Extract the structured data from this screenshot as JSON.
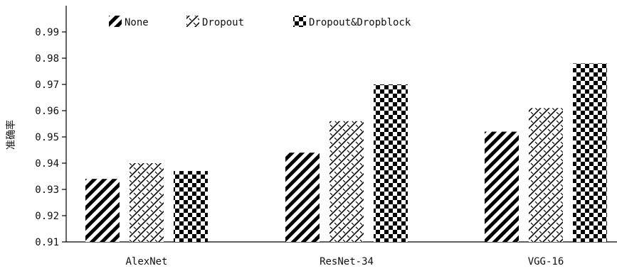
{
  "chart_data": {
    "type": "bar",
    "title": "",
    "xlabel": "",
    "ylabel": "准确率",
    "categories": [
      "AlexNet",
      "ResNet-34",
      "VGG-16"
    ],
    "ylim": [
      0.91,
      1.0
    ],
    "yticks": [
      "0.91",
      "0.92",
      "0.93",
      "0.94",
      "0.95",
      "0.96",
      "0.97",
      "0.98",
      "0.99"
    ],
    "grid": false,
    "legend_position": "top-left",
    "series": [
      {
        "name": "None",
        "pattern": "diagonal-stripes",
        "values": [
          0.934,
          0.944,
          0.952
        ]
      },
      {
        "name": "Dropout",
        "pattern": "crosshatch",
        "values": [
          0.94,
          0.956,
          0.961
        ]
      },
      {
        "name": "Dropout&Dropblock",
        "pattern": "checkerboard",
        "values": [
          0.937,
          0.97,
          0.978
        ]
      }
    ]
  }
}
